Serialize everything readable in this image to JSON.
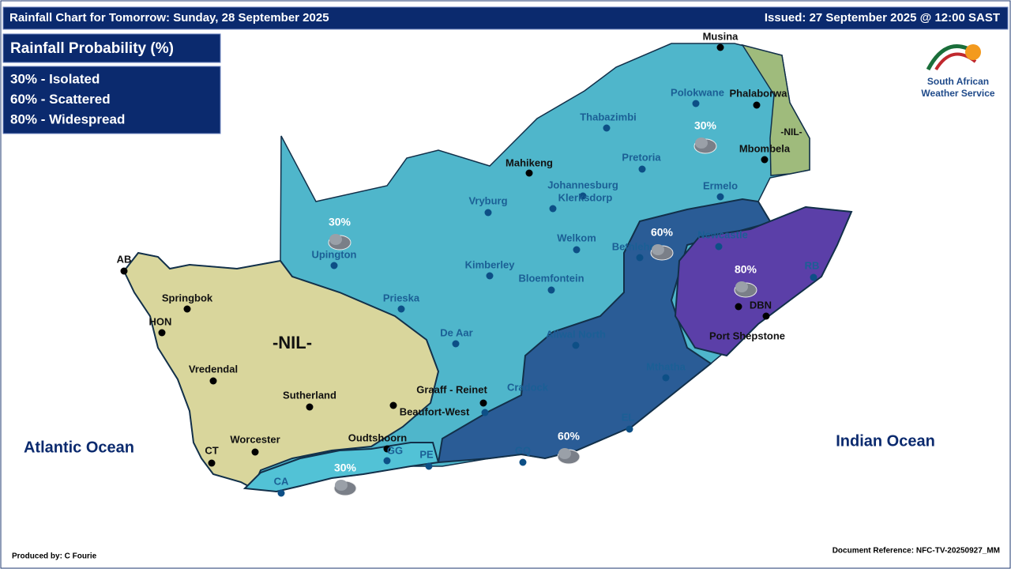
{
  "header": {
    "title": "Rainfall Chart for Tomorrow: Sunday, 28 September 2025",
    "issued": "Issued: 27 September 2025 @ 12:00 SAST"
  },
  "legend": {
    "title": "Rainfall Probability (%)",
    "items": [
      "30% - Isolated",
      "60% - Scattered",
      "80% - Widespread"
    ]
  },
  "logo": {
    "lines": [
      "South African",
      "Weather Service"
    ]
  },
  "oceans": [
    "Atlantic Ocean",
    "Indian Ocean"
  ],
  "zones": [
    "30%",
    "30%",
    "60%",
    "80%",
    "60%",
    "30%",
    "-NIL-",
    "-NIL-"
  ],
  "cities": [
    "Musina",
    "Polokwane",
    "Phalaborwa",
    "Thabazimbi",
    "Mbombela",
    "Pretoria",
    "Mahikeng",
    "Johannesburg",
    "Klerksdorp",
    "Ermelo",
    "Vryburg",
    "Newcastle",
    "Welkom",
    "Bethlehem",
    "Upington",
    "Kimberley",
    "Bloemfontein",
    "RB",
    "DBN",
    "Prieska",
    "Springbok",
    "AB",
    "HON",
    "De Aar",
    "Aliwal North",
    "Port Shepstone",
    "Vredendal",
    "Mthatha",
    "Sutherland",
    "Graaff - Reinet",
    "Cradock",
    "Beaufort-West",
    "EL",
    "Worcester",
    "CT",
    "Oudtshoorn",
    "GG",
    "PE",
    "GQ",
    "CA"
  ],
  "footer": {
    "produced_by": "Produced by: C Fourie",
    "reference": "Document Reference: NFC-TV-20250927_MM"
  }
}
